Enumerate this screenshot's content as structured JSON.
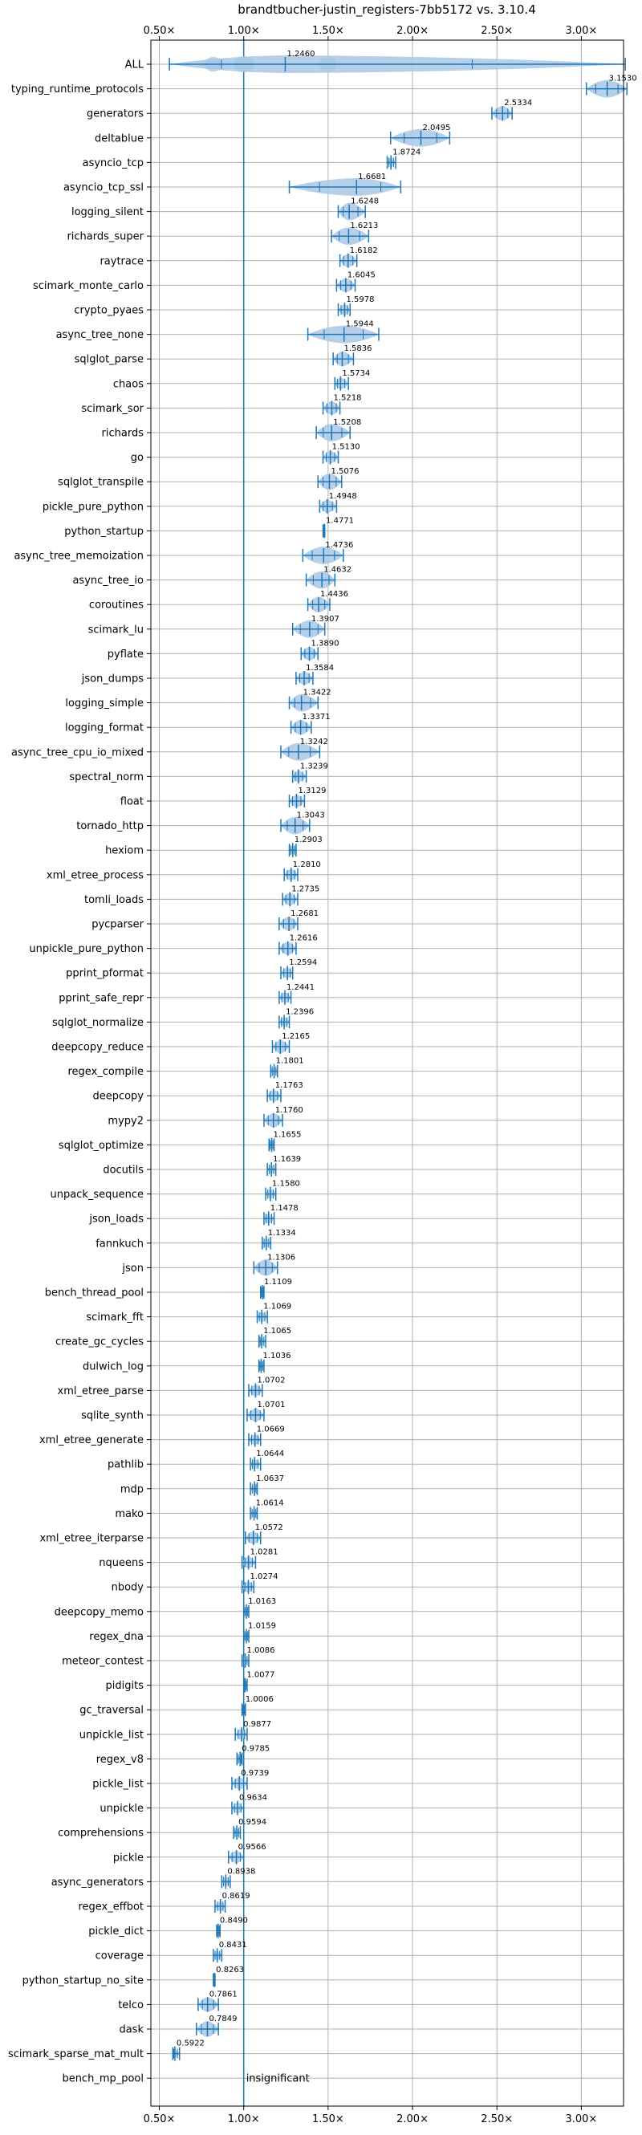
{
  "chart_data": {
    "type": "violin",
    "orientation": "horizontal",
    "title": "brandtbucher-justin_registers-7bb5172 vs. 3.10.4",
    "xlim": [
      0.45,
      3.25
    ],
    "x_ticks": [
      0.5,
      1.0,
      1.5,
      2.0,
      2.5,
      3.0
    ],
    "x_tick_labels": [
      "0.50×",
      "1.00×",
      "1.50×",
      "2.00×",
      "2.50×",
      "3.00×"
    ],
    "reference_line": 1.0,
    "grid": true,
    "colors": {
      "violin": "#a9c8e6",
      "line": "#1f77b4",
      "grid": "#b0b0b0"
    },
    "categories": [
      "ALL",
      "typing_runtime_protocols",
      "generators",
      "deltablue",
      "asyncio_tcp",
      "asyncio_tcp_ssl",
      "logging_silent",
      "richards_super",
      "raytrace",
      "scimark_monte_carlo",
      "crypto_pyaes",
      "async_tree_none",
      "sqlglot_parse",
      "chaos",
      "scimark_sor",
      "richards",
      "go",
      "sqlglot_transpile",
      "pickle_pure_python",
      "python_startup",
      "async_tree_memoization",
      "async_tree_io",
      "coroutines",
      "scimark_lu",
      "pyflate",
      "json_dumps",
      "logging_simple",
      "logging_format",
      "async_tree_cpu_io_mixed",
      "spectral_norm",
      "float",
      "tornado_http",
      "hexiom",
      "xml_etree_process",
      "tomli_loads",
      "pycparser",
      "unpickle_pure_python",
      "pprint_pformat",
      "pprint_safe_repr",
      "sqlglot_normalize",
      "deepcopy_reduce",
      "regex_compile",
      "deepcopy",
      "mypy2",
      "sqlglot_optimize",
      "docutils",
      "unpack_sequence",
      "json_loads",
      "fannkuch",
      "json",
      "bench_thread_pool",
      "scimark_fft",
      "create_gc_cycles",
      "dulwich_log",
      "xml_etree_parse",
      "sqlite_synth",
      "xml_etree_generate",
      "pathlib",
      "mdp",
      "mako",
      "xml_etree_iterparse",
      "nqueens",
      "nbody",
      "deepcopy_memo",
      "regex_dna",
      "meteor_contest",
      "pidigits",
      "gc_traversal",
      "unpickle_list",
      "regex_v8",
      "pickle_list",
      "unpickle",
      "comprehensions",
      "pickle",
      "async_generators",
      "regex_effbot",
      "pickle_dict",
      "coverage",
      "python_startup_no_site",
      "telco",
      "dask",
      "scimark_sparse_mat_mult",
      "bench_mp_pool"
    ],
    "values": [
      1.246,
      3.153,
      2.5334,
      2.0495,
      1.8724,
      1.6681,
      1.6248,
      1.6213,
      1.6182,
      1.6045,
      1.5978,
      1.5944,
      1.5836,
      1.5734,
      1.5218,
      1.5208,
      1.513,
      1.5076,
      1.4948,
      1.4771,
      1.4736,
      1.4632,
      1.4436,
      1.3907,
      1.389,
      1.3584,
      1.3422,
      1.3371,
      1.3242,
      1.3239,
      1.3129,
      1.3043,
      1.2903,
      1.281,
      1.2735,
      1.2681,
      1.2616,
      1.2594,
      1.2441,
      1.2396,
      1.2165,
      1.1801,
      1.1763,
      1.176,
      1.1655,
      1.1639,
      1.158,
      1.1478,
      1.1334,
      1.1306,
      1.1109,
      1.1069,
      1.1065,
      1.1036,
      1.0702,
      1.0701,
      1.0669,
      1.0644,
      1.0637,
      1.0614,
      1.0572,
      1.0281,
      1.0274,
      1.0163,
      1.0159,
      1.0086,
      1.0077,
      1.0006,
      0.9877,
      0.9785,
      0.9739,
      0.9634,
      0.9594,
      0.9566,
      0.8938,
      0.8619,
      0.849,
      0.8431,
      0.8263,
      0.7861,
      0.7849,
      0.5922,
      null
    ],
    "value_labels": [
      "1.2460",
      "3.1530",
      "2.5334",
      "2.0495",
      "1.8724",
      "1.6681",
      "1.6248",
      "1.6213",
      "1.6182",
      "1.6045",
      "1.5978",
      "1.5944",
      "1.5836",
      "1.5734",
      "1.5218",
      "1.5208",
      "1.5130",
      "1.5076",
      "1.4948",
      "1.4771",
      "1.4736",
      "1.4632",
      "1.4436",
      "1.3907",
      "1.3890",
      "1.3584",
      "1.3422",
      "1.3371",
      "1.3242",
      "1.3239",
      "1.3129",
      "1.3043",
      "1.2903",
      "1.2810",
      "1.2735",
      "1.2681",
      "1.2616",
      "1.2594",
      "1.2441",
      "1.2396",
      "1.2165",
      "1.1801",
      "1.1763",
      "1.1760",
      "1.1655",
      "1.1639",
      "1.1580",
      "1.1478",
      "1.1334",
      "1.1306",
      "1.1109",
      "1.1069",
      "1.1065",
      "1.1036",
      "1.0702",
      "1.0701",
      "1.0669",
      "1.0644",
      "1.0637",
      "1.0614",
      "1.0572",
      "1.0281",
      "1.0274",
      "1.0163",
      "1.0159",
      "1.0086",
      "1.0077",
      "1.0006",
      "0.9877",
      "0.9785",
      "0.9739",
      "0.9634",
      "0.9594",
      "0.9566",
      "0.8938",
      "0.8619",
      "0.8490",
      "0.8431",
      "0.8263",
      "0.7861",
      "0.7849",
      "0.5922",
      "insignificant"
    ],
    "ranges": [
      [
        0.56,
        3.26
      ],
      [
        3.03,
        3.27
      ],
      [
        2.47,
        2.59
      ],
      [
        1.87,
        2.22
      ],
      [
        1.85,
        1.9
      ],
      [
        1.27,
        1.93
      ],
      [
        1.56,
        1.72
      ],
      [
        1.52,
        1.74
      ],
      [
        1.57,
        1.67
      ],
      [
        1.55,
        1.66
      ],
      [
        1.56,
        1.63
      ],
      [
        1.38,
        1.8
      ],
      [
        1.53,
        1.65
      ],
      [
        1.54,
        1.62
      ],
      [
        1.47,
        1.57
      ],
      [
        1.43,
        1.63
      ],
      [
        1.47,
        1.56
      ],
      [
        1.44,
        1.58
      ],
      [
        1.45,
        1.55
      ],
      [
        1.47,
        1.48
      ],
      [
        1.35,
        1.59
      ],
      [
        1.37,
        1.54
      ],
      [
        1.38,
        1.51
      ],
      [
        1.29,
        1.48
      ],
      [
        1.34,
        1.44
      ],
      [
        1.31,
        1.41
      ],
      [
        1.27,
        1.44
      ],
      [
        1.28,
        1.4
      ],
      [
        1.22,
        1.45
      ],
      [
        1.29,
        1.37
      ],
      [
        1.27,
        1.36
      ],
      [
        1.22,
        1.39
      ],
      [
        1.27,
        1.31
      ],
      [
        1.24,
        1.32
      ],
      [
        1.23,
        1.32
      ],
      [
        1.21,
        1.32
      ],
      [
        1.21,
        1.31
      ],
      [
        1.22,
        1.29
      ],
      [
        1.21,
        1.28
      ],
      [
        1.21,
        1.27
      ],
      [
        1.17,
        1.27
      ],
      [
        1.16,
        1.2
      ],
      [
        1.14,
        1.22
      ],
      [
        1.12,
        1.23
      ],
      [
        1.15,
        1.18
      ],
      [
        1.14,
        1.19
      ],
      [
        1.13,
        1.19
      ],
      [
        1.12,
        1.18
      ],
      [
        1.11,
        1.16
      ],
      [
        1.06,
        1.2
      ],
      [
        1.1,
        1.12
      ],
      [
        1.08,
        1.14
      ],
      [
        1.09,
        1.13
      ],
      [
        1.09,
        1.12
      ],
      [
        1.03,
        1.11
      ],
      [
        1.02,
        1.12
      ],
      [
        1.03,
        1.1
      ],
      [
        1.04,
        1.1
      ],
      [
        1.04,
        1.08
      ],
      [
        1.04,
        1.08
      ],
      [
        1.01,
        1.1
      ],
      [
        0.99,
        1.07
      ],
      [
        0.99,
        1.06
      ],
      [
        1.0,
        1.03
      ],
      [
        1.0,
        1.03
      ],
      [
        0.99,
        1.03
      ],
      [
        1.0,
        1.02
      ],
      [
        0.99,
        1.01
      ],
      [
        0.95,
        1.02
      ],
      [
        0.96,
        0.99
      ],
      [
        0.93,
        1.02
      ],
      [
        0.93,
        1.0
      ],
      [
        0.94,
        0.98
      ],
      [
        0.91,
        1.0
      ],
      [
        0.87,
        0.92
      ],
      [
        0.83,
        0.89
      ],
      [
        0.84,
        0.86
      ],
      [
        0.82,
        0.87
      ],
      [
        0.82,
        0.83
      ],
      [
        0.73,
        0.85
      ],
      [
        0.72,
        0.85
      ],
      [
        0.58,
        0.62
      ],
      [
        1.0,
        1.0
      ]
    ],
    "extra_modes": {
      "0": [
        0.82,
        1.5
      ]
    }
  }
}
